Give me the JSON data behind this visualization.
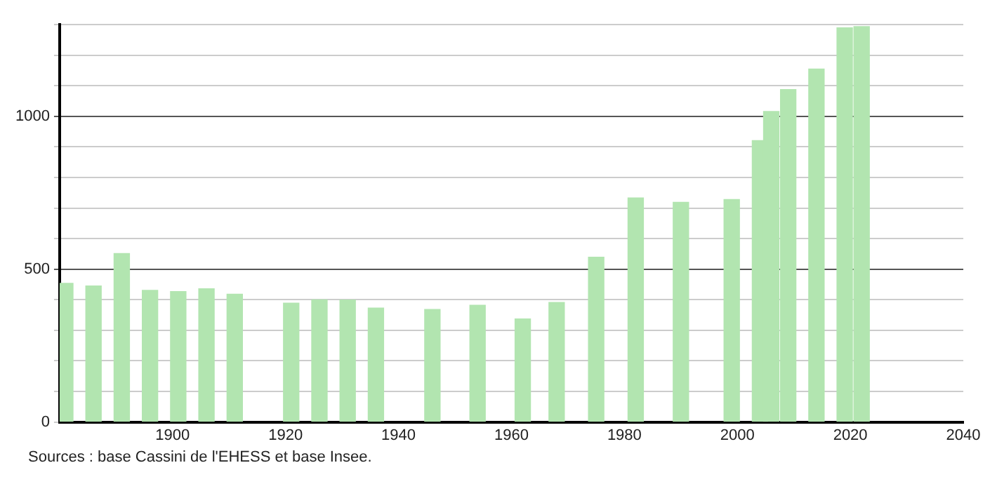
{
  "chart_data": {
    "type": "bar",
    "x": [
      1881,
      1886,
      1891,
      1896,
      1901,
      1906,
      1911,
      1921,
      1926,
      1931,
      1936,
      1946,
      1954,
      1962,
      1968,
      1975,
      1982,
      1990,
      1999,
      2004,
      2006,
      2009,
      2014,
      2019,
      2022
    ],
    "values": [
      454,
      445,
      551,
      431,
      427,
      436,
      418,
      389,
      400,
      399,
      373,
      368,
      382,
      337,
      391,
      539,
      733,
      719,
      728,
      921,
      1016,
      1088,
      1155,
      1290,
      1294
    ],
    "color": "#b2e5b0",
    "xlim": [
      1880,
      2040
    ],
    "xticks": [
      1900,
      1920,
      1940,
      1960,
      1980,
      2000,
      2020,
      2040
    ],
    "ylim": [
      0,
      1300
    ],
    "yticks": [
      0,
      {
        "value": 100,
        "label": null
      },
      {
        "value": 200,
        "label": null
      },
      {
        "value": 300,
        "label": null
      },
      {
        "value": 400,
        "label": null
      },
      500,
      {
        "value": 600,
        "label": null
      },
      {
        "value": 700,
        "label": null
      },
      {
        "value": 800,
        "label": null
      },
      {
        "value": 900,
        "label": null
      },
      1000,
      {
        "value": 1100,
        "label": null
      },
      {
        "value": 1200,
        "label": null
      },
      {
        "value": 1300,
        "label": null
      }
    ],
    "grid": "y",
    "annotations": [
      "Sources : base Cassini de l'EHESS et base Insee."
    ]
  }
}
